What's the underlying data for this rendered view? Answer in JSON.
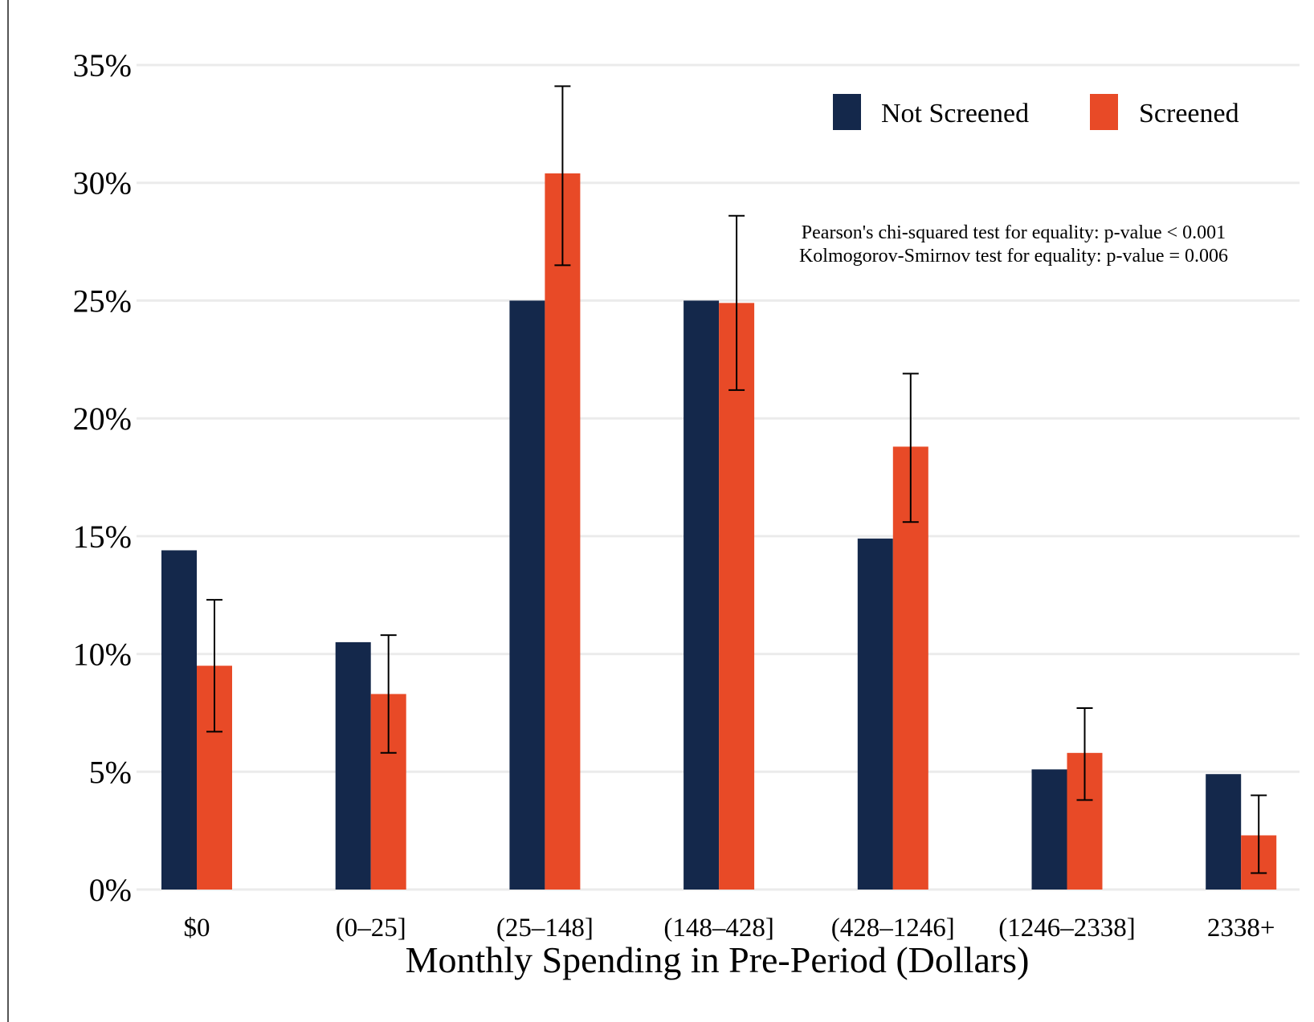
{
  "chart_data": {
    "type": "bar",
    "title": "",
    "xlabel": "Monthly Spending in Pre-Period (Dollars)",
    "ylabel": "",
    "ylim": [
      0,
      35
    ],
    "yticks": [
      0,
      5,
      10,
      15,
      20,
      25,
      30,
      35
    ],
    "ytick_labels": [
      "0%",
      "5%",
      "10%",
      "15%",
      "20%",
      "25%",
      "30%",
      "35%"
    ],
    "categories": [
      "$0",
      "(0–25]",
      "(25–148]",
      "(148–428]",
      "(428–1246]",
      "(1246–2338]",
      "2338+"
    ],
    "series": [
      {
        "name": "Not Screened",
        "color": "#14284b",
        "values": [
          14.4,
          10.5,
          25.0,
          25.0,
          14.9,
          5.1,
          4.9
        ]
      },
      {
        "name": "Screened",
        "color": "#e84a27",
        "values": [
          9.5,
          8.3,
          30.4,
          24.9,
          18.8,
          5.8,
          2.3
        ],
        "error_low": [
          6.7,
          5.8,
          26.5,
          21.2,
          15.6,
          3.8,
          0.7
        ],
        "error_high": [
          12.3,
          10.8,
          34.1,
          28.6,
          21.9,
          7.7,
          4.0
        ]
      }
    ],
    "legend_position": "top-right",
    "grid": "horizontal",
    "annotations": [
      "Pearson's chi-squared test for equality: p-value < 0.001",
      "Kolmogorov-Smirnov test for equality: p-value = 0.006"
    ]
  }
}
